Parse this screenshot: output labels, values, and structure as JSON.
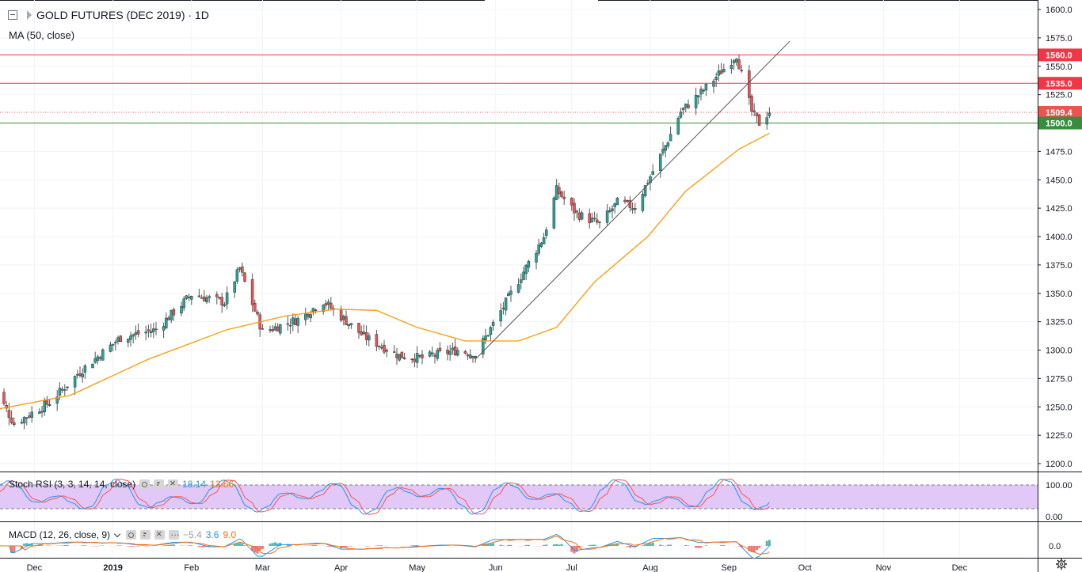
{
  "header": {
    "title": "GOLD FUTURES (DEC 2019) · 1D",
    "indicator_ma": "MA (50, close)"
  },
  "stoch_rsi": {
    "label": "Stoch RSI (3, 3, 14, 14, close)",
    "k_value": "18.14",
    "d_value": "13.56",
    "upper_label": "100.00",
    "lower_label": "0.00",
    "k_color": "#2196f3",
    "d_color": "#ff5252"
  },
  "macd": {
    "label": "MACD (12, 26, close, 9)",
    "hist_value": "−5.4",
    "macd_value": "3.6",
    "signal_value": "9.0",
    "zero_label": "0.0",
    "macd_color": "#2196f3",
    "signal_color": "#ff6d00"
  },
  "price_axis": {
    "labels": [
      "1600.0",
      "1575.0",
      "1550.0",
      "1525.0",
      "1500.0",
      "1475.0",
      "1450.0",
      "1425.0",
      "1400.0",
      "1375.0",
      "1350.0",
      "1325.0",
      "1300.0",
      "1275.0",
      "1250.0",
      "1225.0",
      "1200.0"
    ]
  },
  "time_axis": {
    "labels": [
      "Dec",
      "2019",
      "Feb",
      "Mar",
      "Apr",
      "May",
      "Jun",
      "Jul",
      "Aug",
      "Sep",
      "Oct",
      "Nov",
      "Dec"
    ]
  },
  "levels": [
    {
      "label": "1560.0",
      "color": "#f23645",
      "style": "solid"
    },
    {
      "label": "1535.0",
      "color": "#f23645",
      "style": "solid"
    },
    {
      "label": "1509.4",
      "color": "#ef5350",
      "style": "dotted"
    },
    {
      "label": "1500.0",
      "color": "#388e3c",
      "style": "solid"
    }
  ],
  "colors": {
    "up": "#26a69a",
    "down": "#ef5350",
    "ma": "#ff9800",
    "trendline": "#555555",
    "stoch_band": "#e1c8f7"
  },
  "chart_data": {
    "type": "candlestick",
    "title": "GOLD FUTURES (DEC 2019)",
    "interval": "1D",
    "ylim": [
      1200,
      1600
    ],
    "x_range": [
      "2018-11-14",
      "2019-12-31"
    ],
    "keypoints": [
      {
        "date": "2018-11-14",
        "close": 1272
      },
      {
        "date": "2018-11-23",
        "close": 1235
      },
      {
        "date": "2018-12-07",
        "close": 1254
      },
      {
        "date": "2018-12-20",
        "close": 1283
      },
      {
        "date": "2019-01-04",
        "close": 1311
      },
      {
        "date": "2019-01-18",
        "close": 1318
      },
      {
        "date": "2019-02-01",
        "close": 1349
      },
      {
        "date": "2019-02-14",
        "close": 1342
      },
      {
        "date": "2019-02-20",
        "close": 1372
      },
      {
        "date": "2019-03-01",
        "close": 1316
      },
      {
        "date": "2019-03-15",
        "close": 1327
      },
      {
        "date": "2019-03-25",
        "close": 1343
      },
      {
        "date": "2019-04-10",
        "close": 1312
      },
      {
        "date": "2019-04-24",
        "close": 1295
      },
      {
        "date": "2019-05-03",
        "close": 1293
      },
      {
        "date": "2019-05-17",
        "close": 1300
      },
      {
        "date": "2019-05-24",
        "close": 1296
      },
      {
        "date": "2019-06-04",
        "close": 1338
      },
      {
        "date": "2019-06-20",
        "close": 1400
      },
      {
        "date": "2019-06-25",
        "close": 1441
      },
      {
        "date": "2019-07-03",
        "close": 1420
      },
      {
        "date": "2019-07-12",
        "close": 1411
      },
      {
        "date": "2019-07-19",
        "close": 1430
      },
      {
        "date": "2019-07-26",
        "close": 1426
      },
      {
        "date": "2019-08-07",
        "close": 1480
      },
      {
        "date": "2019-08-13",
        "close": 1510
      },
      {
        "date": "2019-08-23",
        "close": 1531
      },
      {
        "date": "2019-09-04",
        "close": 1560
      },
      {
        "date": "2019-09-10",
        "close": 1510
      },
      {
        "date": "2019-09-13",
        "close": 1500
      },
      {
        "date": "2019-09-17",
        "close": 1510
      }
    ],
    "ma50": [
      {
        "date": "2018-11-14",
        "value": 1247
      },
      {
        "date": "2018-12-15",
        "value": 1260
      },
      {
        "date": "2019-01-15",
        "value": 1292
      },
      {
        "date": "2019-02-15",
        "value": 1318
      },
      {
        "date": "2019-03-10",
        "value": 1330
      },
      {
        "date": "2019-03-30",
        "value": 1336
      },
      {
        "date": "2019-04-15",
        "value": 1335
      },
      {
        "date": "2019-05-01",
        "value": 1320
      },
      {
        "date": "2019-05-20",
        "value": 1308
      },
      {
        "date": "2019-06-10",
        "value": 1308
      },
      {
        "date": "2019-06-25",
        "value": 1320
      },
      {
        "date": "2019-07-10",
        "value": 1360
      },
      {
        "date": "2019-07-31",
        "value": 1400
      },
      {
        "date": "2019-08-15",
        "value": 1440
      },
      {
        "date": "2019-09-05",
        "value": 1477
      },
      {
        "date": "2019-09-17",
        "value": 1491
      }
    ],
    "trendline": {
      "start": {
        "date": "2019-05-24",
        "value": 1292
      },
      "end": {
        "date": "2019-09-25",
        "value": 1572
      }
    },
    "horizontal_levels": [
      1560,
      1535,
      1509.4,
      1500
    ]
  }
}
